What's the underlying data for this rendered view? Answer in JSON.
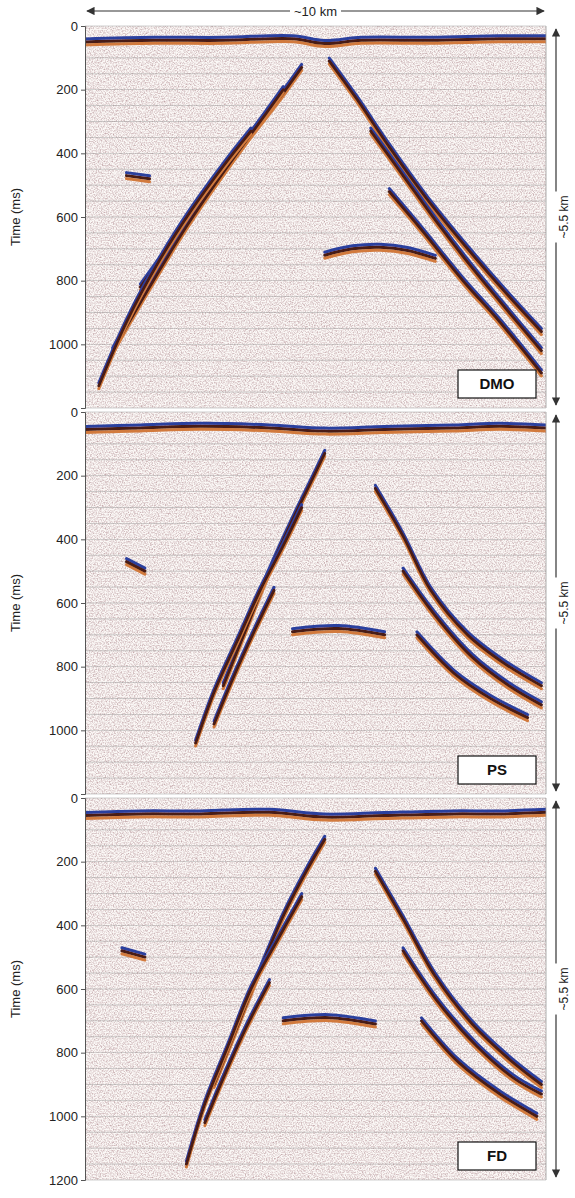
{
  "width_annotation": "~10 km",
  "chart_data": [
    {
      "type": "seismic_section",
      "label": "DMO",
      "y_label": "Time (ms)",
      "depth_annotation": "~5.5 km",
      "xlim": [
        0,
        10
      ],
      "ylim": [
        0,
        1200
      ],
      "yticks": [
        0,
        200,
        400,
        600,
        800,
        1000
      ],
      "tick_labels": "y",
      "grid": true,
      "minor_yticks": [
        0,
        50,
        100,
        150,
        200,
        250,
        300,
        350,
        400,
        450,
        500,
        550,
        600,
        650,
        700,
        750,
        800,
        850,
        900,
        950,
        1000,
        1050,
        1100,
        1150,
        1200
      ],
      "events": [
        {
          "x": [
            0,
            1.5,
            3,
            4.5,
            5.2,
            6,
            7.5,
            9,
            10
          ],
          "t": [
            50,
            45,
            45,
            40,
            55,
            45,
            45,
            40,
            40
          ]
        },
        {
          "x": [
            4.7,
            4.2,
            3.5,
            2.8,
            2.0,
            1.2
          ],
          "t": [
            130,
            230,
            360,
            500,
            660,
            820
          ]
        },
        {
          "x": [
            4.3,
            3.7,
            3.0,
            2.2,
            1.4,
            0.6
          ],
          "t": [
            200,
            320,
            460,
            630,
            820,
            1020
          ]
        },
        {
          "x": [
            3.6,
            3.0,
            2.3,
            1.6,
            0.9,
            0.3
          ],
          "t": [
            330,
            440,
            580,
            740,
            930,
            1130
          ]
        },
        {
          "x": [
            0.9,
            1.4
          ],
          "t": [
            470,
            480
          ]
        },
        {
          "x": [
            5.3,
            5.9,
            6.6,
            7.4,
            8.3,
            9.2,
            9.9
          ],
          "t": [
            110,
            230,
            380,
            540,
            700,
            850,
            960
          ]
        },
        {
          "x": [
            6.2,
            6.9,
            7.6,
            8.4,
            9.2,
            9.9
          ],
          "t": [
            330,
            470,
            610,
            760,
            900,
            1020
          ]
        },
        {
          "x": [
            6.6,
            7.3,
            8.2,
            9.0,
            9.9
          ],
          "t": [
            520,
            640,
            800,
            930,
            1090
          ]
        },
        {
          "x": [
            5.2,
            5.8,
            6.4,
            7.0,
            7.6
          ],
          "t": [
            720,
            700,
            695,
            705,
            730
          ]
        }
      ]
    },
    {
      "type": "seismic_section",
      "label": "PS",
      "y_label": "Time (ms)",
      "depth_annotation": "~5.5 km",
      "xlim": [
        0,
        10
      ],
      "ylim": [
        0,
        1200
      ],
      "yticks": [
        0,
        200,
        400,
        600,
        800,
        1000
      ],
      "tick_labels": "y",
      "grid": true,
      "minor_yticks": [
        0,
        50,
        100,
        150,
        200,
        250,
        300,
        350,
        400,
        450,
        500,
        550,
        600,
        650,
        700,
        750,
        800,
        850,
        900,
        950,
        1000,
        1050,
        1100,
        1150,
        1200
      ],
      "events": [
        {
          "x": [
            0,
            1.2,
            2.5,
            4,
            5.2,
            6.5,
            8,
            9,
            10
          ],
          "t": [
            55,
            50,
            45,
            50,
            60,
            55,
            50,
            45,
            50
          ]
        },
        {
          "x": [
            5.2,
            4.9,
            4.5,
            4.0,
            3.5,
            3.0
          ],
          "t": [
            130,
            220,
            340,
            500,
            680,
            860
          ]
        },
        {
          "x": [
            4.7,
            4.3,
            3.8,
            3.3,
            2.8,
            2.4
          ],
          "t": [
            300,
            420,
            560,
            720,
            880,
            1040
          ]
        },
        {
          "x": [
            4.1,
            3.7,
            3.2,
            2.8
          ],
          "t": [
            560,
            680,
            840,
            980
          ]
        },
        {
          "x": [
            0.9,
            1.3
          ],
          "t": [
            470,
            500
          ]
        },
        {
          "x": [
            6.3,
            6.9,
            7.5,
            8.3,
            9.1,
            9.9
          ],
          "t": [
            240,
            390,
            560,
            700,
            790,
            860
          ]
        },
        {
          "x": [
            6.9,
            7.6,
            8.4,
            9.2,
            9.9
          ],
          "t": [
            500,
            640,
            770,
            860,
            920
          ]
        },
        {
          "x": [
            7.2,
            8.0,
            8.8,
            9.6
          ],
          "t": [
            700,
            820,
            900,
            960
          ]
        },
        {
          "x": [
            4.5,
            5.5,
            6.5
          ],
          "t": [
            690,
            680,
            700
          ]
        }
      ]
    },
    {
      "type": "seismic_section",
      "label": "FD",
      "y_label": "Time (ms)",
      "depth_annotation": "~5.5 km",
      "xlim": [
        0,
        10
      ],
      "ylim": [
        0,
        1200
      ],
      "yticks": [
        0,
        200,
        400,
        600,
        800,
        1000,
        1200
      ],
      "tick_labels": "y",
      "grid": true,
      "minor_yticks": [
        0,
        50,
        100,
        150,
        200,
        250,
        300,
        350,
        400,
        450,
        500,
        550,
        600,
        650,
        700,
        750,
        800,
        850,
        900,
        950,
        1000,
        1050,
        1100,
        1150,
        1200
      ],
      "events": [
        {
          "x": [
            0,
            1.2,
            2.5,
            4,
            5.2,
            6.5,
            8,
            9,
            10
          ],
          "t": [
            55,
            50,
            50,
            45,
            60,
            55,
            50,
            50,
            45
          ]
        },
        {
          "x": [
            5.2,
            4.8,
            4.3,
            3.8,
            3.3,
            2.8
          ],
          "t": [
            130,
            230,
            370,
            540,
            720,
            900
          ]
        },
        {
          "x": [
            4.7,
            4.2,
            3.6,
            3.1,
            2.6,
            2.2
          ],
          "t": [
            310,
            440,
            600,
            780,
            960,
            1150
          ]
        },
        {
          "x": [
            4.0,
            3.5,
            3.0,
            2.6
          ],
          "t": [
            580,
            720,
            880,
            1020
          ]
        },
        {
          "x": [
            0.8,
            1.3
          ],
          "t": [
            480,
            500
          ]
        },
        {
          "x": [
            6.3,
            6.9,
            7.6,
            8.4,
            9.2,
            9.9
          ],
          "t": [
            230,
            380,
            560,
            710,
            820,
            900
          ]
        },
        {
          "x": [
            6.9,
            7.6,
            8.5,
            9.3,
            9.9
          ],
          "t": [
            480,
            630,
            780,
            880,
            930
          ]
        },
        {
          "x": [
            7.3,
            8.1,
            9.0,
            9.8
          ],
          "t": [
            700,
            830,
            930,
            1000
          ]
        },
        {
          "x": [
            4.3,
            5.3,
            6.3
          ],
          "t": [
            700,
            690,
            710
          ]
        }
      ]
    }
  ]
}
